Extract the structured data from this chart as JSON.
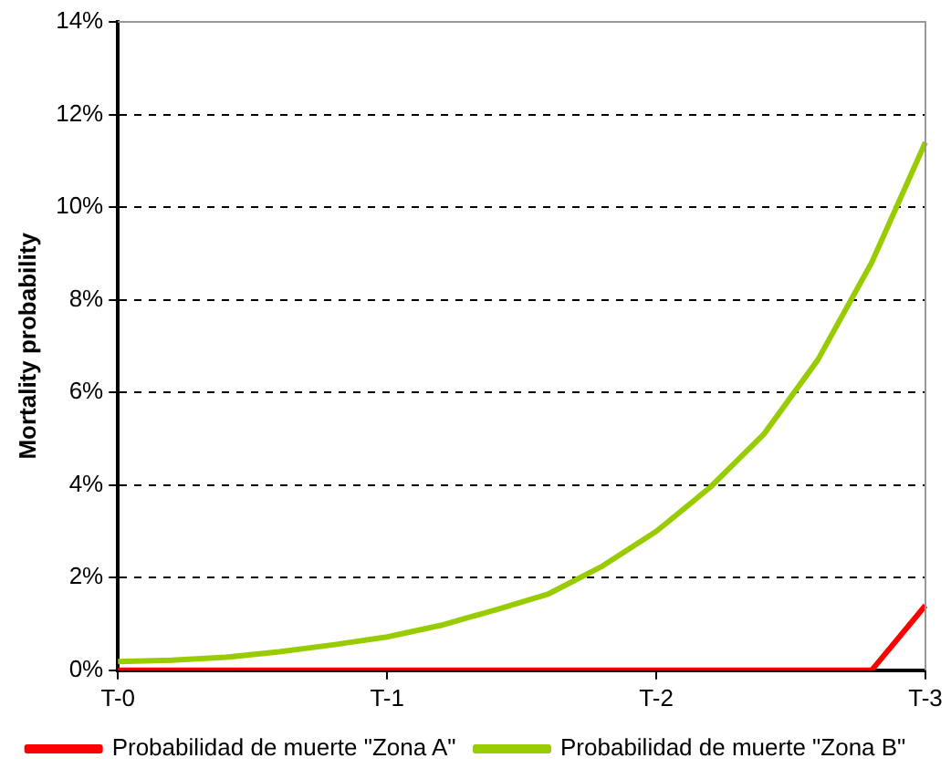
{
  "chart_data": {
    "type": "line",
    "ylabel": "Mortality probability",
    "categories": [
      "T-0",
      null,
      null,
      null,
      null,
      "T-1",
      null,
      null,
      null,
      null,
      "T-2",
      null,
      null,
      null,
      null,
      "T-3"
    ],
    "ylim": [
      0,
      14
    ],
    "yticks": [
      {
        "value": 0,
        "label": "0%"
      },
      {
        "value": 2,
        "label": "2%"
      },
      {
        "value": 4,
        "label": "4%"
      },
      {
        "value": 6,
        "label": "6%"
      },
      {
        "value": 8,
        "label": "8%"
      },
      {
        "value": 10,
        "label": "10%"
      },
      {
        "value": 12,
        "label": "12%"
      },
      {
        "value": 14,
        "label": "14%"
      }
    ],
    "grid": "y",
    "legend": "bottom",
    "marker": "none",
    "line_style": "solid",
    "series": [
      {
        "name": "Probabilidad de muerte \"Zona A\"",
        "color": "#ff0000",
        "values": [
          0,
          0,
          0,
          0,
          0,
          0,
          0,
          0,
          0,
          0,
          0,
          0,
          0,
          0,
          0,
          1.4
        ]
      },
      {
        "name": "Probabilidad de muerte \"Zona B\"",
        "color": "#99cc00",
        "values": [
          0.19,
          0.22,
          0.28,
          0.4,
          0.55,
          0.72,
          0.97,
          1.3,
          1.65,
          2.25,
          3.0,
          3.95,
          5.1,
          6.7,
          8.8,
          11.4
        ]
      }
    ]
  }
}
